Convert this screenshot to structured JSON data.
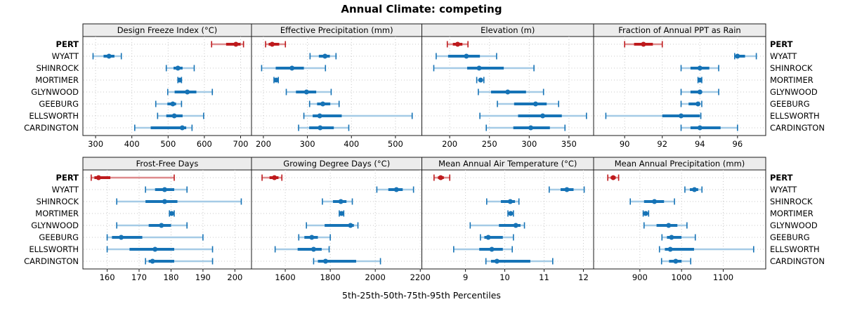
{
  "title": "Annual Climate: competing",
  "xlabel": "5th-25th-50th-75th-95th Percentiles",
  "colors": {
    "main_blue": "#1673B6",
    "light_blue": "#A5CBE6",
    "main_red": "#BE1A1D",
    "light_red": "#DE8A8C",
    "strip_bg": "#ECECEC",
    "grid": "#C8C8C8",
    "border": "#1A1A1A",
    "text": "#000000"
  },
  "chart_data": {
    "type": "dotplot-interval",
    "percentiles": [
      5,
      25,
      50,
      75,
      95
    ],
    "highlight_station": "PERT",
    "stations": [
      "PERT",
      "WYATT",
      "SHINROCK",
      "MORTIMER",
      "GLYNWOOD",
      "GEEBURG",
      "ELLSWORTH",
      "CARDINGTON"
    ],
    "panels": [
      {
        "title": "Design Freeze Index (°C)",
        "row": 0,
        "col": 0,
        "xlim": [
          265,
          730
        ],
        "ticks": [
          300,
          400,
          500,
          600,
          700
        ],
        "values": [
          [
            620,
            660,
            687,
            700,
            708
          ],
          [
            293,
            322,
            337,
            352,
            371
          ],
          [
            495,
            515,
            527,
            540,
            572
          ],
          [
            527,
            530,
            532,
            534,
            537
          ],
          [
            499,
            518,
            553,
            578,
            622
          ],
          [
            466,
            498,
            513,
            522,
            537
          ],
          [
            471,
            495,
            517,
            540,
            598
          ],
          [
            408,
            452,
            539,
            550,
            566
          ]
        ]
      },
      {
        "title": "Effective Precipitation (mm)",
        "row": 0,
        "col": 1,
        "xlim": [
          173,
          560
        ],
        "ticks": [
          200,
          300,
          400,
          500
        ],
        "values": [
          [
            205,
            212,
            220,
            236,
            250
          ],
          [
            306,
            326,
            340,
            351,
            365
          ],
          [
            196,
            228,
            265,
            292,
            341
          ],
          [
            224,
            227,
            229,
            231,
            234
          ],
          [
            252,
            274,
            298,
            320,
            354
          ],
          [
            305,
            322,
            335,
            352,
            372
          ],
          [
            292,
            312,
            328,
            378,
            538
          ],
          [
            280,
            304,
            329,
            360,
            394
          ]
        ]
      },
      {
        "title": "Elevation (m)",
        "row": 0,
        "col": 2,
        "xlim": [
          165,
          381
        ],
        "ticks": [
          200,
          250,
          300,
          350
        ],
        "values": [
          [
            197,
            204,
            210,
            216,
            223
          ],
          [
            183,
            198,
            221,
            238,
            259
          ],
          [
            180,
            222,
            237,
            268,
            306
          ],
          [
            234,
            237,
            239,
            241,
            243
          ],
          [
            236,
            252,
            273,
            296,
            318
          ],
          [
            260,
            281,
            308,
            322,
            337
          ],
          [
            238,
            286,
            317,
            341,
            372
          ],
          [
            246,
            280,
            302,
            326,
            345
          ]
        ]
      },
      {
        "title": "Fraction of Annual PPT as Rain",
        "row": 0,
        "col": 3,
        "xlim": [
          88.35,
          97.5
        ],
        "ticks": [
          90,
          92,
          94,
          96
        ],
        "values": [
          [
            90,
            90.5,
            91,
            91.5,
            92
          ],
          [
            95.85,
            95.95,
            96,
            96.4,
            97
          ],
          [
            93,
            93.5,
            94,
            94.5,
            95
          ],
          [
            93.9,
            94,
            94,
            94,
            94.1
          ],
          [
            93,
            93.5,
            94,
            94.1,
            95
          ],
          [
            93,
            93.4,
            93.9,
            94,
            94.1
          ],
          [
            89,
            92,
            93,
            94,
            94.05
          ],
          [
            93,
            93.5,
            94,
            95.1,
            96
          ]
        ]
      },
      {
        "title": "Frost-Free Days",
        "row": 1,
        "col": 0,
        "xlim": [
          152.4,
          205.2
        ],
        "ticks": [
          160,
          170,
          180,
          190,
          200
        ],
        "values": [
          [
            155,
            156,
            157.3,
            161,
            181
          ],
          [
            172,
            175,
            178,
            181,
            185
          ],
          [
            163,
            172,
            178,
            182,
            202
          ],
          [
            179.5,
            180,
            180.2,
            180.6,
            181
          ],
          [
            163,
            173,
            177,
            180,
            185
          ],
          [
            160,
            161.5,
            164.4,
            171,
            190
          ],
          [
            160,
            167,
            175,
            181,
            193
          ],
          [
            172,
            173,
            174.2,
            181,
            193
          ]
        ]
      },
      {
        "title": "Growing Degree Days (°C)",
        "row": 1,
        "col": 1,
        "xlim": [
          1450,
          2207
        ],
        "ticks": [
          1600,
          1800,
          2000,
          2200
        ],
        "values": [
          [
            1497,
            1530,
            1552,
            1570,
            1585
          ],
          [
            2007,
            2058,
            2094,
            2122,
            2170
          ],
          [
            1765,
            1812,
            1847,
            1872,
            1898
          ],
          [
            1840,
            1846,
            1850,
            1854,
            1860
          ],
          [
            1694,
            1775,
            1890,
            1905,
            1923
          ],
          [
            1660,
            1685,
            1718,
            1745,
            1800
          ],
          [
            1555,
            1655,
            1726,
            1762,
            1795
          ],
          [
            1726,
            1745,
            1779,
            1915,
            2023
          ]
        ]
      },
      {
        "title": "Mean Annual Air Temperature (°C)",
        "row": 1,
        "col": 2,
        "xlim": [
          7.89,
          12.26
        ],
        "ticks": [
          9,
          10,
          11,
          12
        ],
        "values": [
          [
            8.2,
            8.3,
            8.37,
            8.45,
            8.6
          ],
          [
            11.13,
            11.42,
            11.58,
            11.75,
            12.02
          ],
          [
            9.54,
            9.9,
            10.14,
            10.26,
            10.36
          ],
          [
            10.08,
            10.12,
            10.15,
            10.18,
            10.22
          ],
          [
            9.12,
            9.85,
            10.28,
            10.4,
            10.5
          ],
          [
            9.38,
            9.48,
            9.58,
            9.95,
            10.22
          ],
          [
            8.7,
            9.35,
            9.67,
            9.95,
            10.19
          ],
          [
            9.52,
            9.65,
            9.8,
            10.65,
            11.22
          ]
        ]
      },
      {
        "title": "Mean Annual Precipitation (mm)",
        "row": 1,
        "col": 3,
        "xlim": [
          789,
          1202
        ],
        "ticks": [
          900,
          1000,
          1100
        ],
        "values": [
          [
            823,
            830,
            836,
            842,
            849
          ],
          [
            1008,
            1020,
            1031,
            1040,
            1049
          ],
          [
            877,
            910,
            935,
            958,
            983
          ],
          [
            908,
            911,
            914,
            917,
            921
          ],
          [
            910,
            940,
            969,
            990,
            1013
          ],
          [
            953,
            965,
            976,
            1000,
            1033
          ],
          [
            947,
            960,
            973,
            1030,
            1173
          ],
          [
            952,
            970,
            986,
            1000,
            1022
          ]
        ]
      }
    ]
  }
}
